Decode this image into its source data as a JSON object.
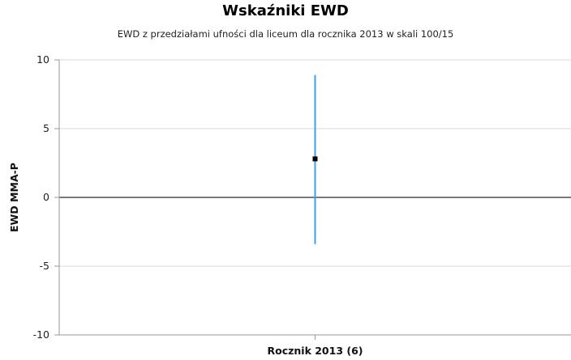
{
  "chart_data": {
    "type": "scatter",
    "title": "Wskaźniki EWD",
    "subtitle": "EWD z przedziałami ufności dla liceum dla rocznika 2013 w skali 100/15",
    "xlabel": "",
    "ylabel": "EWD MMA-P",
    "categories": [
      "Rocznik 2013 (6)"
    ],
    "series": [
      {
        "values": [
          2.8
        ],
        "lower": [
          -3.4
        ],
        "upper": [
          8.9
        ]
      }
    ],
    "ylim": [
      -10,
      10
    ],
    "yticks": [
      "10",
      "5",
      "0",
      "-5",
      "-10"
    ],
    "grid": true,
    "legend": "none",
    "colors": {
      "error_bar": "#3aa0ee",
      "point": "#000000",
      "zero_line": "#7a7a7a",
      "grid": "#d9d9d9",
      "axis": "#9a9a9a"
    }
  }
}
